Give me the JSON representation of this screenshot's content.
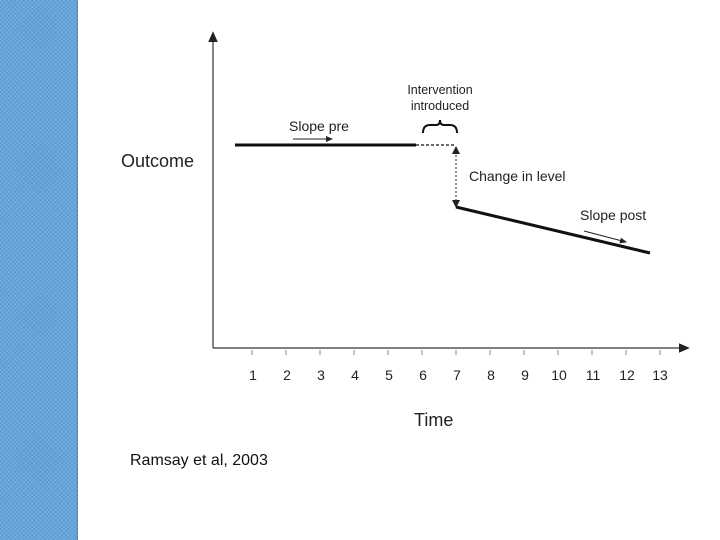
{
  "diagram": {
    "y_axis_label": "Outcome",
    "x_axis_label": "Time",
    "x_ticks": [
      "1",
      "2",
      "3",
      "4",
      "5",
      "6",
      "7",
      "8",
      "9",
      "10",
      "11",
      "12",
      "13"
    ],
    "annotations": {
      "slope_pre": "Slope pre",
      "intervention_line1": "Intervention",
      "intervention_line2": "introduced",
      "change_in_level": "Change in level",
      "slope_post": "Slope post"
    }
  },
  "citation": "Ramsay et al, 2003",
  "colors": {
    "side_bar": "#5b9bd5",
    "line": "#111111",
    "axis": "#222222"
  }
}
